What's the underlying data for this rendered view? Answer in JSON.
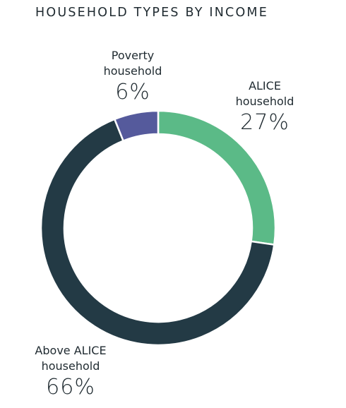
{
  "chart_data": {
    "type": "pie",
    "title": "HOUSEHOLD TYPES BY INCOME",
    "categories": [
      "ALICE household",
      "Above ALICE household",
      "Poverty household"
    ],
    "values": [
      27,
      66,
      6
    ],
    "value_labels": [
      "27%",
      "66%",
      "6%"
    ],
    "colors": [
      "#5bba87",
      "#233a45",
      "#555a9c"
    ]
  }
}
